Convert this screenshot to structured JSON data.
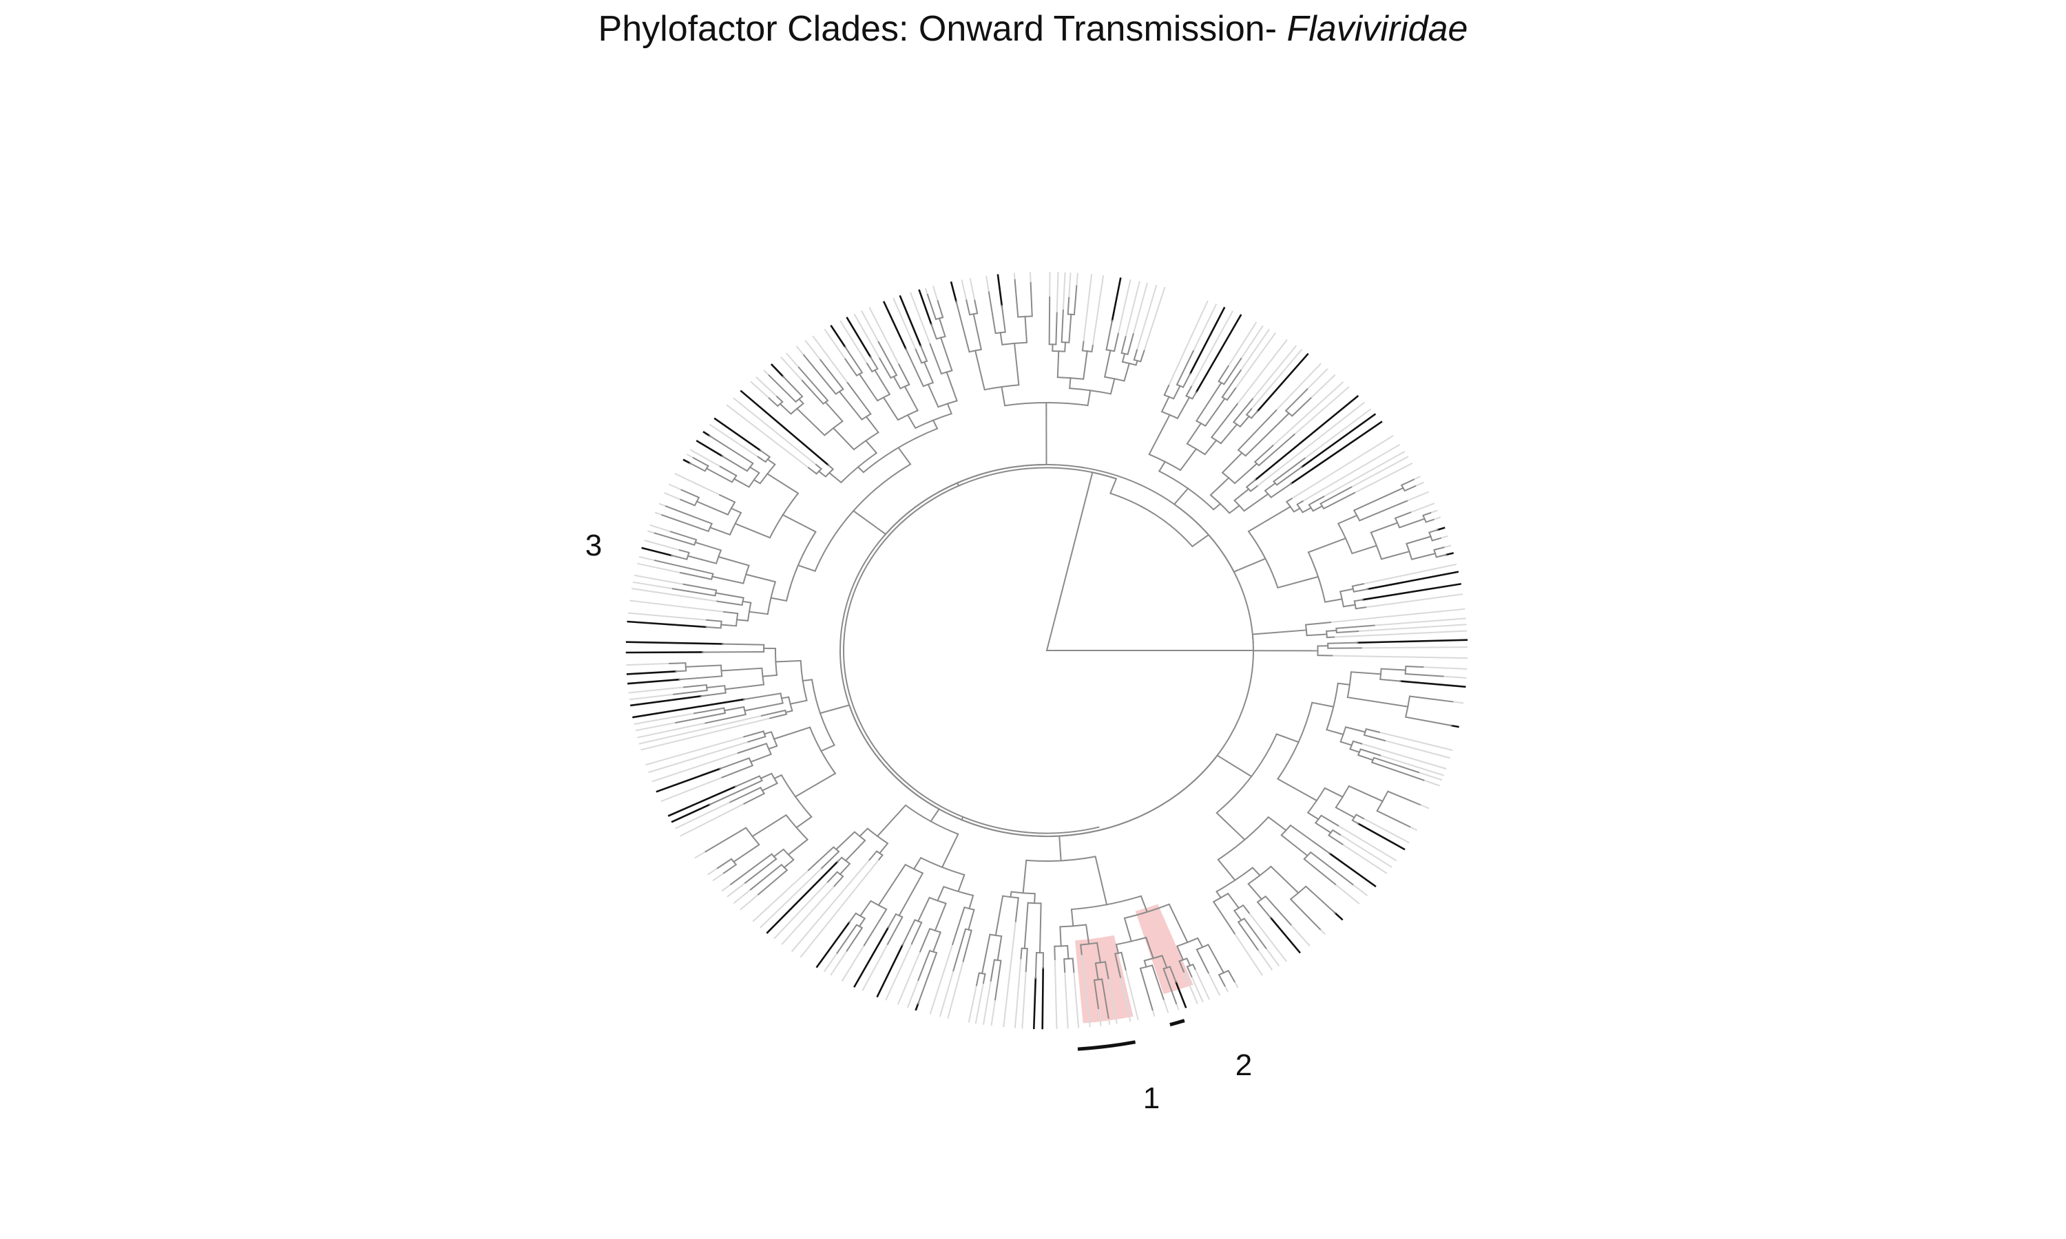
{
  "title": {
    "prefix": "Phylofactor Clades: Onward Transmission- ",
    "taxon": "Flaviviridae"
  },
  "colors": {
    "branch": "#8a8a8a",
    "branch_dark": "#111111",
    "tip_light": "#d9d9d9",
    "highlight": "#f4b7b7",
    "bracket": "#111111"
  },
  "clades": [
    {
      "label": "1",
      "highlighted": true
    },
    {
      "label": "2",
      "highlighted": true
    },
    {
      "label": "3",
      "highlighted": false
    }
  ]
}
